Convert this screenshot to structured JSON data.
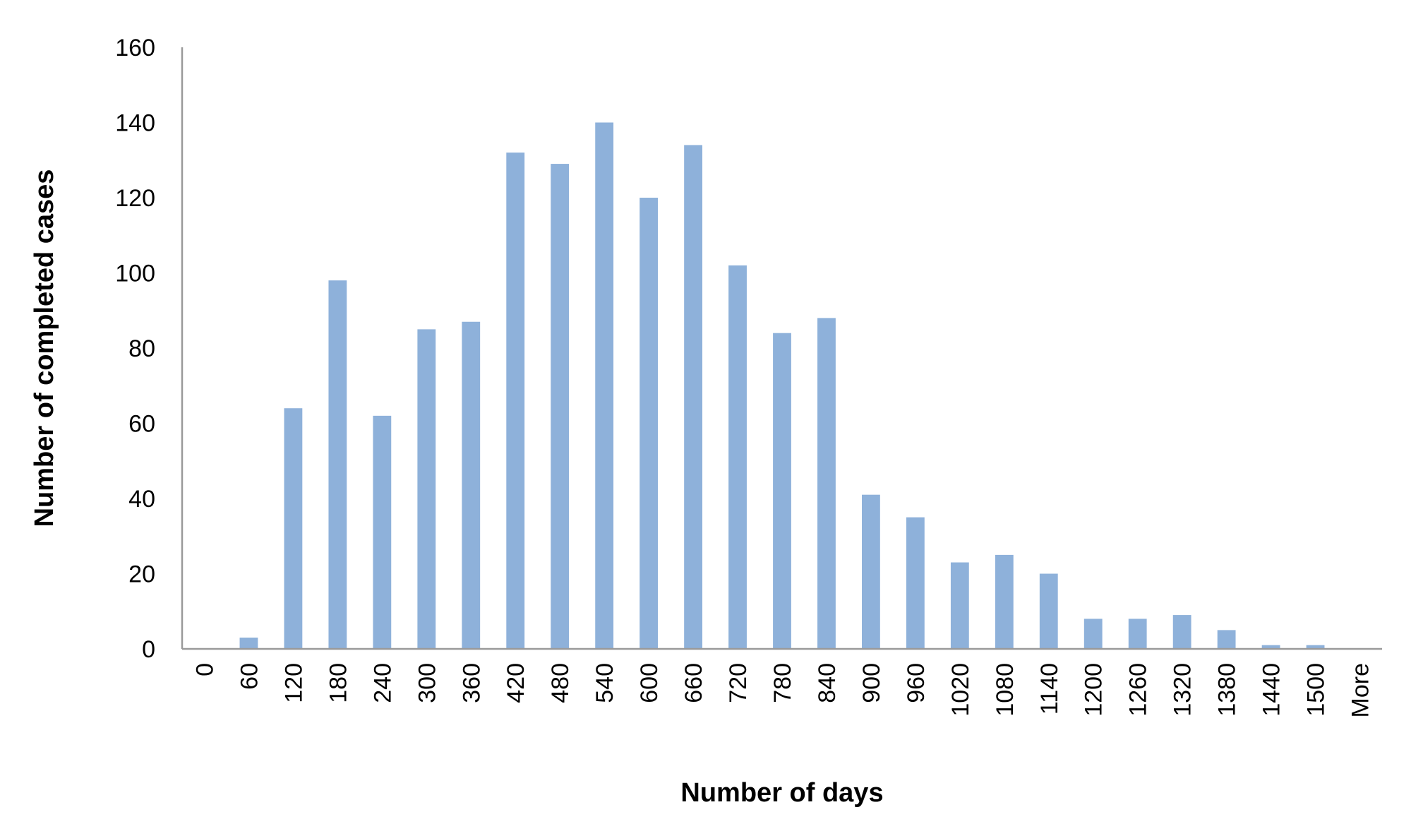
{
  "chart_data": {
    "type": "bar",
    "title": "",
    "xlabel": "Number of days",
    "ylabel": "Number of completed cases",
    "categories": [
      "0",
      "60",
      "120",
      "180",
      "240",
      "300",
      "360",
      "420",
      "480",
      "540",
      "600",
      "660",
      "720",
      "780",
      "840",
      "900",
      "960",
      "1020",
      "1080",
      "1140",
      "1200",
      "1260",
      "1320",
      "1380",
      "1440",
      "1500",
      "More"
    ],
    "values": [
      0,
      3,
      64,
      98,
      62,
      85,
      87,
      132,
      129,
      140,
      120,
      134,
      102,
      84,
      88,
      41,
      35,
      23,
      25,
      20,
      8,
      8,
      9,
      5,
      1,
      1,
      0
    ],
    "ylim": [
      0,
      160
    ],
    "yticks": [
      "0",
      "20",
      "40",
      "60",
      "80",
      "100",
      "120",
      "140",
      "160"
    ],
    "grid": false,
    "legend": "none",
    "colors": {
      "bar": "#8EB1DA",
      "axis": "#9a9a9a",
      "text": "#000000"
    }
  }
}
